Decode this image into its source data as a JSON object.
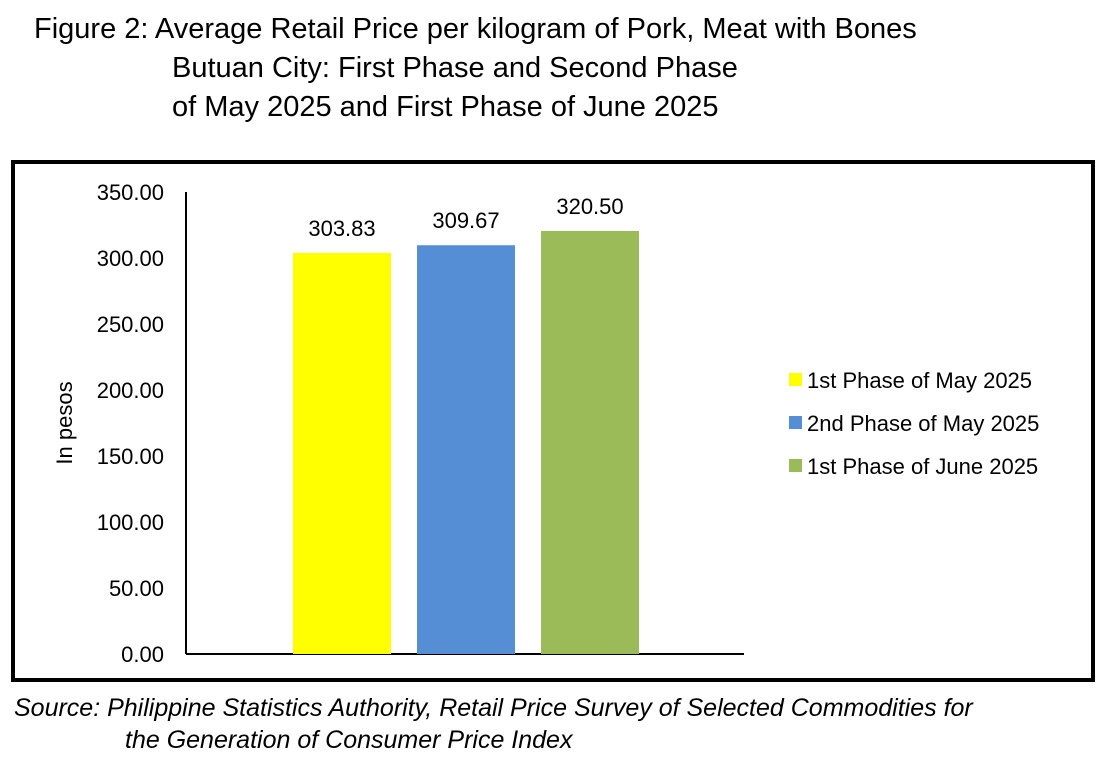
{
  "title": {
    "line1": "Figure 2: Average Retail Price per kilogram of Pork, Meat with Bones",
    "line2": "Butuan City: First Phase and Second Phase",
    "line3": "of May 2025 and First Phase of June 2025"
  },
  "source": {
    "line1": "Source: Philippine Statistics Authority, Retail Price Survey of Selected Commodities for",
    "line2": "the Generation of Consumer Price Index"
  },
  "chart_data": {
    "type": "bar",
    "ylabel": "In pesos",
    "ylim": [
      0,
      350
    ],
    "yticks": [
      "0.00",
      "50.00",
      "100.00",
      "150.00",
      "200.00",
      "250.00",
      "300.00",
      "350.00"
    ],
    "series": [
      {
        "name": "1st Phase of May 2025",
        "value": 303.83,
        "label": "303.83",
        "color": "#FFFF00"
      },
      {
        "name": "2nd Phase of May 2025",
        "value": 309.67,
        "label": "309.67",
        "color": "#558ED5"
      },
      {
        "name": "1st Phase of June 2025",
        "value": 320.5,
        "label": "320.50",
        "color": "#9BBB59"
      }
    ],
    "legend": "right",
    "grid": false
  }
}
